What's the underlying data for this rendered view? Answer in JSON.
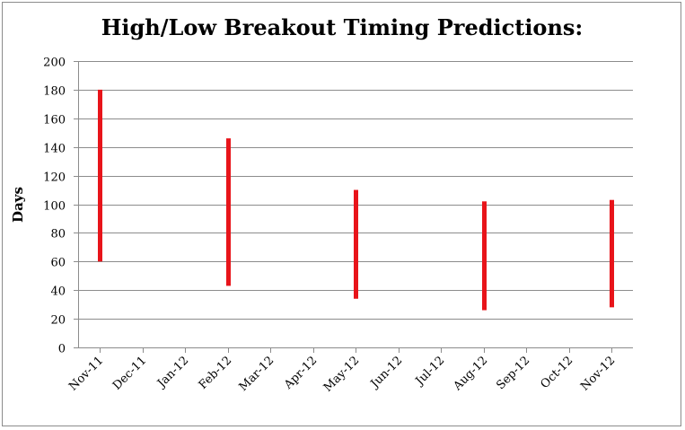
{
  "chart_data": {
    "type": "bar",
    "subtype": "floating-range",
    "title": "High/Low Breakout Timing Predictions:",
    "xlabel": "",
    "ylabel": "Days",
    "ylim": [
      0,
      200
    ],
    "yticks": [
      0,
      20,
      40,
      60,
      80,
      100,
      120,
      140,
      160,
      180,
      200
    ],
    "categories": [
      "Nov-11",
      "Dec-11",
      "Jan-12",
      "Feb-12",
      "Mar-12",
      "Apr-12",
      "May-12",
      "Jun-12",
      "Jul-12",
      "Aug-12",
      "Sep-12",
      "Oct-12",
      "Nov-12"
    ],
    "ranges": [
      {
        "x": "Nov-11",
        "low": 60,
        "high": 180
      },
      {
        "x": "Feb-12",
        "low": 43,
        "high": 146
      },
      {
        "x": "May-12",
        "low": 34,
        "high": 110
      },
      {
        "x": "Aug-12",
        "low": 26,
        "high": 102
      },
      {
        "x": "Nov-12",
        "low": 28,
        "high": 103
      }
    ],
    "bar_color": "#e8141a",
    "gridlines": true,
    "legend": "none"
  }
}
